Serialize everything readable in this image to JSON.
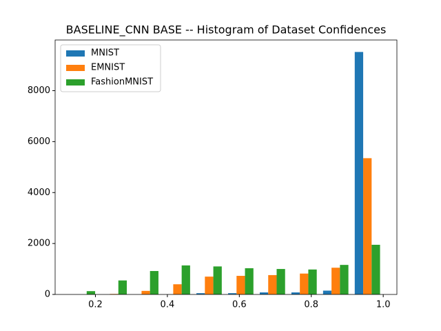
{
  "chart_data": {
    "type": "histogram",
    "title": "BASELINE_CNN BASE -- Histogram of Dataset Confidences",
    "bins": [
      0.12,
      0.208,
      0.296,
      0.384,
      0.472,
      0.56,
      0.648,
      0.736,
      0.824,
      0.912,
      1.0
    ],
    "series": [
      {
        "name": "MNIST",
        "color": "#1f77b4",
        "values": [
          0,
          0,
          0,
          0,
          50,
          50,
          80,
          80,
          150,
          9520
        ]
      },
      {
        "name": "EMNIST",
        "color": "#ff7f0e",
        "values": [
          0,
          20,
          140,
          400,
          700,
          730,
          760,
          820,
          1050,
          5350
        ]
      },
      {
        "name": "FashionMNIST",
        "color": "#2ca02c",
        "values": [
          130,
          550,
          920,
          1140,
          1100,
          1030,
          1000,
          980,
          1160,
          1950
        ]
      }
    ],
    "xlim": [
      0.088,
      1.038
    ],
    "xticks": [
      0.2,
      0.4,
      0.6,
      0.8,
      {
        "value": 1.0,
        "label": "1.0"
      }
    ],
    "ylim": [
      0,
      9990
    ],
    "yticks": [
      0,
      2000,
      4000,
      6000,
      8000
    ],
    "legend": "upper left"
  }
}
